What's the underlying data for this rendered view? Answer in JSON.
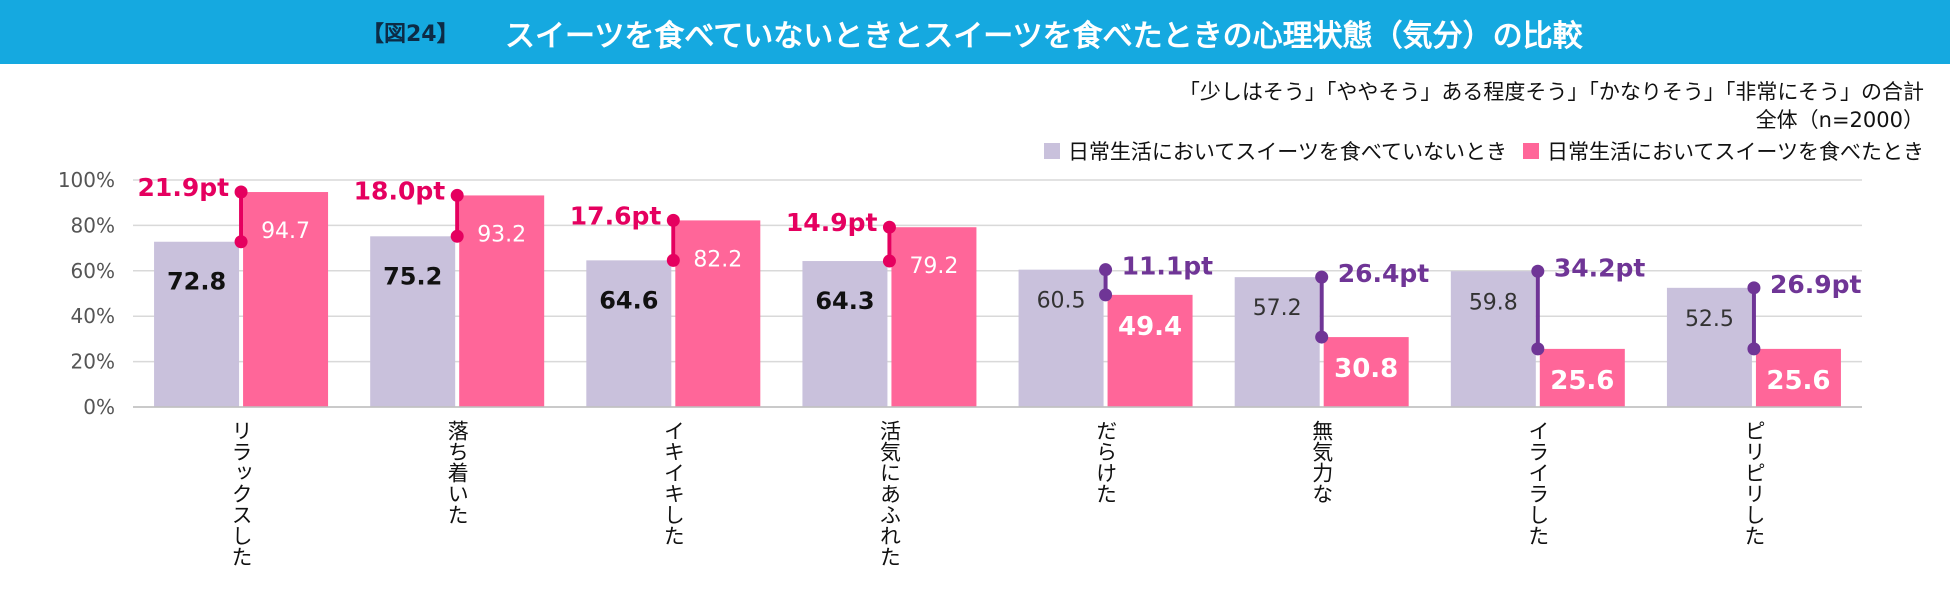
{
  "header": {
    "fig_label": "【図24】",
    "title": "スイーツを食べていないときとスイーツを食べたときの心理状態（気分）の比較"
  },
  "notes": {
    "line1": "「少しはそう」「ややそう」ある程度そう」「かなりそう」「非常にそう」の合計",
    "line2": "全体（n=2000）"
  },
  "colors": {
    "title_bar": "#15a9e0",
    "series_a": "#c9c1dc",
    "series_b": "#ff6699",
    "diff_up": "#e5005f",
    "diff_down": "#6f3596",
    "grid": "#d9d9d9"
  },
  "chart_data": {
    "type": "bar",
    "ylim": [
      0,
      100
    ],
    "yticks": [
      "0%",
      "20%",
      "40%",
      "60%",
      "80%",
      "100%"
    ],
    "legend_position": "top-right",
    "categories": [
      "リラックスした",
      "落ち着いた",
      "イキイキした",
      "活気にあふれた",
      "だらけた",
      "無気力な",
      "イライラした",
      "ピリピリした"
    ],
    "series": [
      {
        "name": "日常生活においてスイーツを食べていないとき",
        "values": [
          72.8,
          75.2,
          64.6,
          64.3,
          60.5,
          57.2,
          59.8,
          52.5
        ]
      },
      {
        "name": "日常生活においてスイーツを食べたとき",
        "values": [
          94.7,
          93.2,
          82.2,
          79.2,
          49.4,
          30.8,
          25.6,
          25.6
        ]
      }
    ],
    "differences": [
      "21.9pt",
      "18.0pt",
      "17.6pt",
      "14.9pt",
      "11.1pt",
      "26.4pt",
      "34.2pt",
      "26.9pt"
    ]
  }
}
